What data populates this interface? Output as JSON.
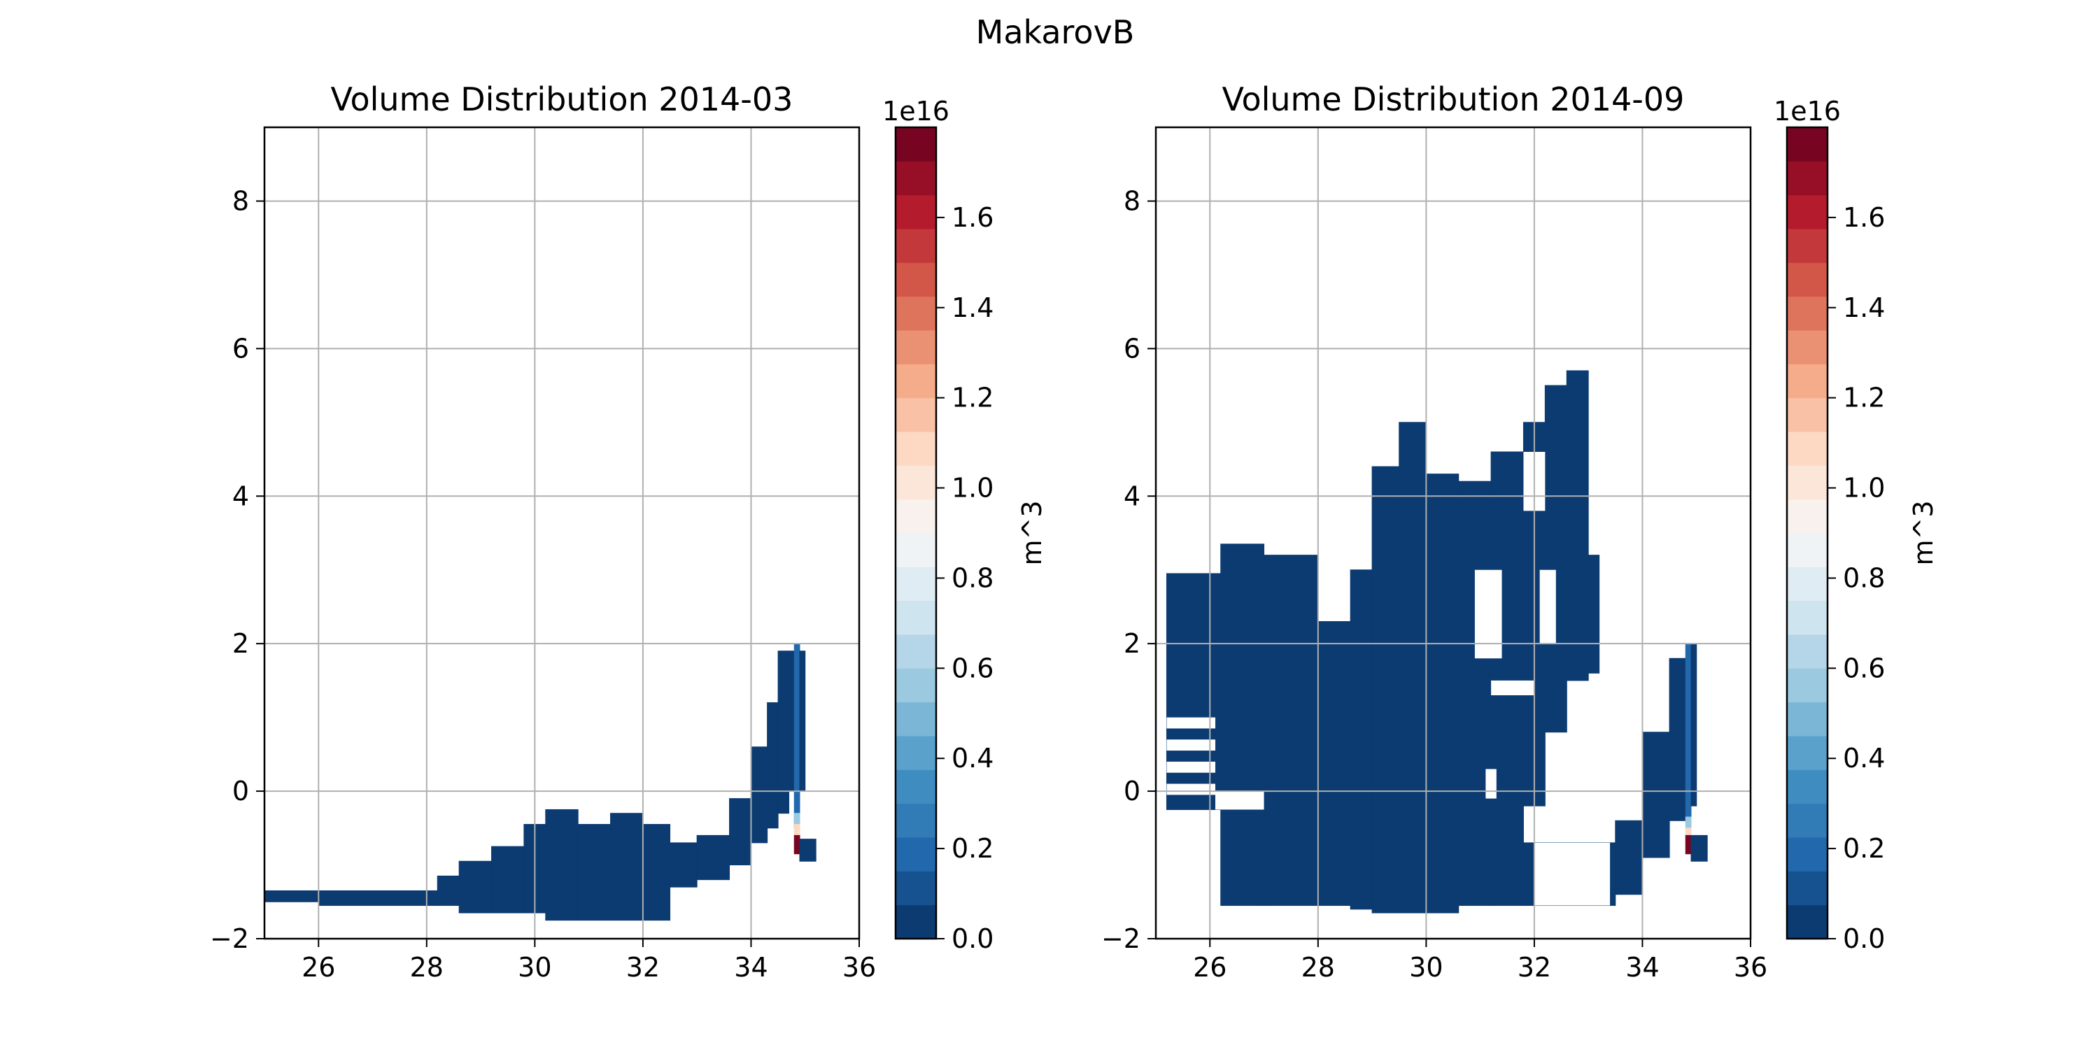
{
  "suptitle": "MakarovB",
  "chart_data": [
    {
      "type": "heatmap",
      "title": "Volume Distribution 2014-03",
      "xlim": [
        25,
        36
      ],
      "ylim": [
        -2,
        9
      ],
      "xticks": [
        26,
        28,
        30,
        32,
        34,
        36
      ],
      "yticks": [
        -2,
        0,
        2,
        4,
        6,
        8
      ],
      "grid": true,
      "cell_size": [
        0.2,
        0.2
      ],
      "background_fill_value": 0,
      "colorbar": {
        "label": "m^3",
        "multiplier": "1e16",
        "min": 0.0,
        "max": 1.8,
        "ticks": [
          0.0,
          0.2,
          0.4,
          0.6,
          0.8,
          1.0,
          1.2,
          1.4,
          1.6
        ],
        "tick_labels": [
          "0.0",
          "0.2",
          "0.4",
          "0.6",
          "0.8",
          "1.0",
          "1.2",
          "1.4",
          "1.6"
        ],
        "colormap": "RdBu_r",
        "levels": 24
      },
      "filled_regions": [
        {
          "x": [
            25.0,
            26.0
          ],
          "y": [
            -1.5,
            -1.35
          ],
          "value": 0.0
        },
        {
          "x": [
            26.0,
            28.2
          ],
          "y": [
            -1.55,
            -1.35
          ],
          "value": 0.0
        },
        {
          "x": [
            28.2,
            28.6
          ],
          "y": [
            -1.55,
            -1.15
          ],
          "value": 0.0
        },
        {
          "x": [
            28.6,
            29.2
          ],
          "y": [
            -1.65,
            -0.95
          ],
          "value": 0.0
        },
        {
          "x": [
            29.2,
            29.8
          ],
          "y": [
            -1.65,
            -0.75
          ],
          "value": 0.0
        },
        {
          "x": [
            29.8,
            30.2
          ],
          "y": [
            -1.65,
            -0.45
          ],
          "value": 0.0
        },
        {
          "x": [
            30.2,
            30.8
          ],
          "y": [
            -1.75,
            -0.25
          ],
          "value": 0.0
        },
        {
          "x": [
            30.8,
            31.4
          ],
          "y": [
            -1.75,
            -0.45
          ],
          "value": 0.0
        },
        {
          "x": [
            31.4,
            32.0
          ],
          "y": [
            -1.75,
            -0.3
          ],
          "value": 0.0
        },
        {
          "x": [
            32.0,
            32.5
          ],
          "y": [
            -1.75,
            -0.45
          ],
          "value": 0.0
        },
        {
          "x": [
            32.5,
            33.0
          ],
          "y": [
            -1.3,
            -0.7
          ],
          "value": 0.0
        },
        {
          "x": [
            33.0,
            33.6
          ],
          "y": [
            -1.2,
            -0.6
          ],
          "value": 0.0
        },
        {
          "x": [
            33.6,
            34.0
          ],
          "y": [
            -1.0,
            -0.1
          ],
          "value": 0.0
        },
        {
          "x": [
            34.0,
            34.3
          ],
          "y": [
            -0.7,
            0.6
          ],
          "value": 0.0
        },
        {
          "x": [
            34.3,
            34.5
          ],
          "y": [
            -0.5,
            1.2
          ],
          "value": 0.0
        },
        {
          "x": [
            34.5,
            34.7
          ],
          "y": [
            -0.3,
            1.9
          ],
          "value": 0.0
        },
        {
          "x": [
            34.7,
            34.8
          ],
          "y": [
            0.0,
            1.9
          ],
          "value": 0.05
        },
        {
          "x": [
            34.8,
            34.9
          ],
          "y": [
            -0.5,
            2.0
          ],
          "value": 0.2
        },
        {
          "x": [
            34.9,
            35.0
          ],
          "y": [
            0.0,
            1.9
          ],
          "value": 0.05
        },
        {
          "x": [
            34.8,
            34.9
          ],
          "y": [
            -0.45,
            -0.3
          ],
          "value": 0.55
        },
        {
          "x": [
            34.8,
            34.9
          ],
          "y": [
            -0.6,
            -0.45
          ],
          "value": 1.05
        },
        {
          "x": [
            34.8,
            34.9
          ],
          "y": [
            -0.85,
            -0.6
          ],
          "value": 1.75
        },
        {
          "x": [
            34.9,
            35.2
          ],
          "y": [
            -0.95,
            -0.65
          ],
          "value": 0.0
        }
      ]
    },
    {
      "type": "heatmap",
      "title": "Volume Distribution 2014-09",
      "xlim": [
        25,
        36
      ],
      "ylim": [
        -2,
        9
      ],
      "xticks": [
        26,
        28,
        30,
        32,
        34,
        36
      ],
      "yticks": [
        -2,
        0,
        2,
        4,
        6,
        8
      ],
      "grid": true,
      "cell_size": [
        0.2,
        0.2
      ],
      "background_fill_value": 0,
      "colorbar": {
        "label": "m^3",
        "multiplier": "1e16",
        "min": 0.0,
        "max": 1.8,
        "ticks": [
          0.0,
          0.2,
          0.4,
          0.6,
          0.8,
          1.0,
          1.2,
          1.4,
          1.6
        ],
        "tick_labels": [
          "0.0",
          "0.2",
          "0.4",
          "0.6",
          "0.8",
          "1.0",
          "1.2",
          "1.4",
          "1.6"
        ],
        "colormap": "RdBu_r",
        "levels": 24
      },
      "filled_regions": [
        {
          "x": [
            25.2,
            26.2
          ],
          "y": [
            -0.25,
            2.95
          ],
          "value": 0.0
        },
        {
          "x": [
            26.2,
            27.0
          ],
          "y": [
            -1.55,
            3.35
          ],
          "value": 0.0
        },
        {
          "x": [
            27.0,
            28.0
          ],
          "y": [
            -1.55,
            3.2
          ],
          "value": 0.0
        },
        {
          "x": [
            28.0,
            28.6
          ],
          "y": [
            -1.55,
            2.3
          ],
          "value": 0.0
        },
        {
          "x": [
            28.6,
            29.0
          ],
          "y": [
            -1.6,
            3.0
          ],
          "value": 0.0
        },
        {
          "x": [
            29.0,
            29.5
          ],
          "y": [
            -1.65,
            4.4
          ],
          "value": 0.0
        },
        {
          "x": [
            29.5,
            30.0
          ],
          "y": [
            -1.65,
            5.0
          ],
          "value": 0.0
        },
        {
          "x": [
            30.0,
            30.6
          ],
          "y": [
            -1.65,
            4.3
          ],
          "value": 0.0
        },
        {
          "x": [
            30.6,
            31.2
          ],
          "y": [
            -1.55,
            4.2
          ],
          "value": 0.0
        },
        {
          "x": [
            31.2,
            31.8
          ],
          "y": [
            -1.55,
            4.6
          ],
          "value": 0.0
        },
        {
          "x": [
            31.8,
            32.2
          ],
          "y": [
            -0.2,
            5.0
          ],
          "value": 0.0
        },
        {
          "x": [
            32.2,
            32.6
          ],
          "y": [
            0.8,
            5.5
          ],
          "value": 0.0
        },
        {
          "x": [
            32.6,
            33.0
          ],
          "y": [
            1.5,
            5.7
          ],
          "value": 0.0
        },
        {
          "x": [
            33.0,
            33.2
          ],
          "y": [
            1.6,
            3.2
          ],
          "value": 0.0
        },
        {
          "x": [
            31.8,
            33.5
          ],
          "y": [
            -1.55,
            -0.7
          ],
          "value": 0.0
        },
        {
          "x": [
            33.5,
            34.0
          ],
          "y": [
            -1.4,
            -0.4
          ],
          "value": 0.0
        },
        {
          "x": [
            34.0,
            34.5
          ],
          "y": [
            -0.9,
            0.8
          ],
          "value": 0.0
        },
        {
          "x": [
            34.5,
            34.8
          ],
          "y": [
            -0.4,
            1.8
          ],
          "value": 0.0
        },
        {
          "x": [
            34.8,
            34.9
          ],
          "y": [
            -0.35,
            2.0
          ],
          "value": 0.2
        },
        {
          "x": [
            34.9,
            35.0
          ],
          "y": [
            -0.2,
            2.0
          ],
          "value": 0.05
        },
        {
          "x": [
            34.8,
            34.9
          ],
          "y": [
            -0.5,
            -0.35
          ],
          "value": 0.55
        },
        {
          "x": [
            34.8,
            34.9
          ],
          "y": [
            -0.6,
            -0.5
          ],
          "value": 1.05
        },
        {
          "x": [
            34.8,
            34.9
          ],
          "y": [
            -0.85,
            -0.6
          ],
          "value": 1.75
        },
        {
          "x": [
            34.9,
            35.2
          ],
          "y": [
            -0.95,
            -0.6
          ],
          "value": 0.0
        }
      ],
      "empty_regions": [
        {
          "x": [
            25.2,
            26.1
          ],
          "y": [
            0.85,
            1.0
          ]
        },
        {
          "x": [
            25.2,
            26.1
          ],
          "y": [
            0.55,
            0.7
          ]
        },
        {
          "x": [
            25.2,
            26.1
          ],
          "y": [
            0.25,
            0.4
          ]
        },
        {
          "x": [
            25.2,
            26.1
          ],
          "y": [
            -0.05,
            0.1
          ]
        },
        {
          "x": [
            26.1,
            27.0
          ],
          "y": [
            -0.25,
            0.0
          ]
        },
        {
          "x": [
            31.2,
            32.0
          ],
          "y": [
            1.3,
            1.5
          ]
        },
        {
          "x": [
            32.0,
            33.4
          ],
          "y": [
            -1.55,
            -0.7
          ]
        },
        {
          "x": [
            30.9,
            31.4
          ],
          "y": [
            1.8,
            3.0
          ]
        },
        {
          "x": [
            31.8,
            32.2
          ],
          "y": [
            3.8,
            4.6
          ]
        },
        {
          "x": [
            32.1,
            32.4
          ],
          "y": [
            2.0,
            3.0
          ]
        },
        {
          "x": [
            31.1,
            31.3
          ],
          "y": [
            -0.1,
            0.3
          ]
        }
      ]
    }
  ]
}
